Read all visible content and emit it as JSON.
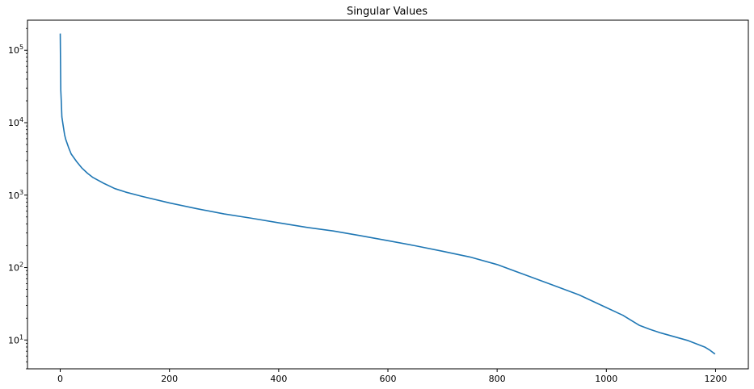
{
  "chart_data": {
    "type": "line",
    "title": "Singular Values",
    "xlabel": "",
    "ylabel": "",
    "yscale": "log",
    "xlim": [
      -60,
      1260
    ],
    "ylim": [
      4,
      260000
    ],
    "grid": false,
    "legend": "none",
    "x_ticks": [
      {
        "value": 0,
        "label": "0"
      },
      {
        "value": 200,
        "label": "200"
      },
      {
        "value": 400,
        "label": "400"
      },
      {
        "value": 600,
        "label": "600"
      },
      {
        "value": 800,
        "label": "800"
      },
      {
        "value": 1000,
        "label": "1000"
      },
      {
        "value": 1200,
        "label": "1200"
      }
    ],
    "y_ticks": [
      {
        "value": 10,
        "base": "10",
        "exp": "1"
      },
      {
        "value": 100,
        "base": "10",
        "exp": "2"
      },
      {
        "value": 1000,
        "base": "10",
        "exp": "3"
      },
      {
        "value": 10000,
        "base": "10",
        "exp": "4"
      },
      {
        "value": 100000,
        "base": "10",
        "exp": "5"
      }
    ],
    "series": [
      {
        "color": "#1f77b4",
        "x": [
          0,
          1,
          2,
          3,
          5,
          8,
          10,
          15,
          20,
          30,
          40,
          50,
          60,
          80,
          100,
          120,
          150,
          200,
          250,
          300,
          350,
          400,
          450,
          500,
          550,
          600,
          650,
          700,
          750,
          800,
          850,
          900,
          950,
          1000,
          1030,
          1060,
          1080,
          1100,
          1150,
          1180,
          1190,
          1199
        ],
        "y": [
          170000,
          28000,
          19000,
          12000,
          9500,
          6800,
          5900,
          4600,
          3700,
          2900,
          2350,
          2000,
          1750,
          1450,
          1230,
          1100,
          960,
          780,
          650,
          550,
          480,
          415,
          360,
          320,
          275,
          235,
          200,
          168,
          140,
          110,
          80,
          58,
          42,
          28,
          22,
          16,
          14,
          12.5,
          9.8,
          8.0,
          7.2,
          6.4
        ]
      }
    ]
  }
}
